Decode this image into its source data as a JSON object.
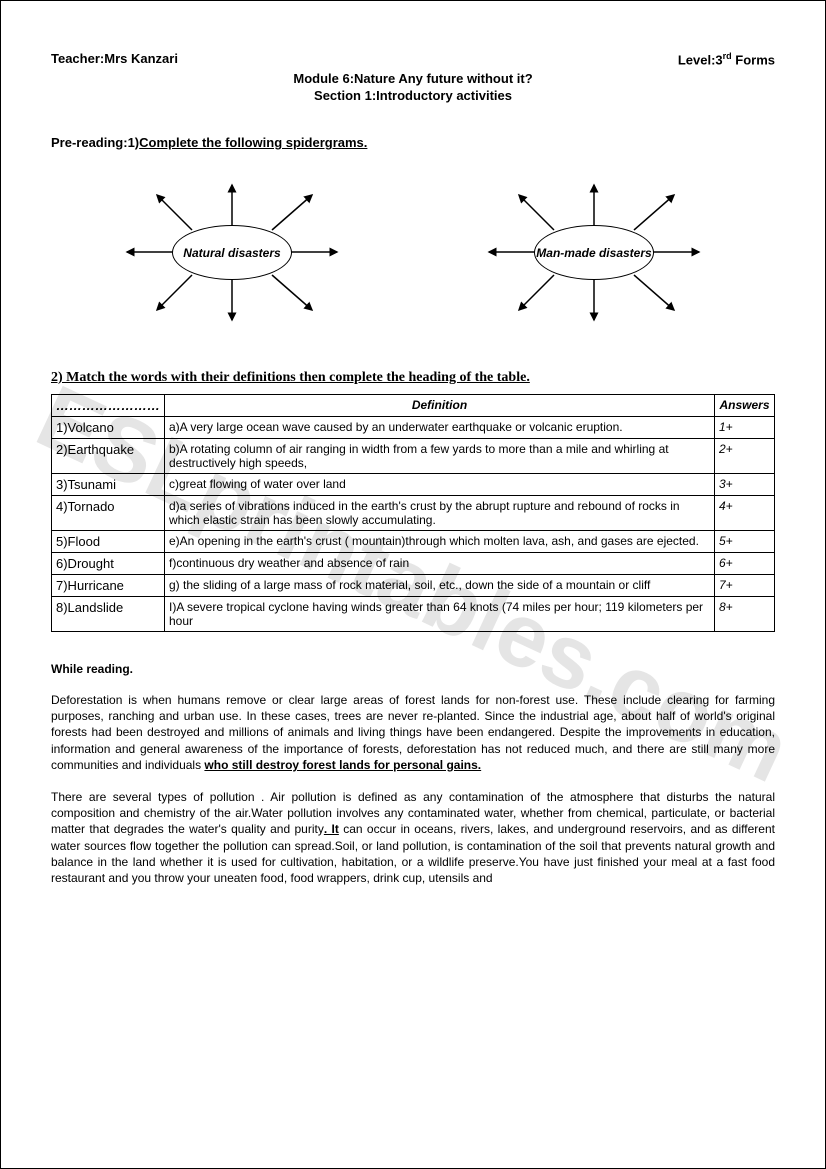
{
  "watermark": "ESLprintables.com",
  "header": {
    "teacher_label": "Teacher:",
    "teacher_name": "Mrs Kanzari",
    "level_label": "Level:",
    "level_value": "3",
    "level_suffix": "rd",
    "level_word": " Forms"
  },
  "title": {
    "line1": "Module 6:Nature Any future without it?",
    "line2": "Section 1:Introductory activities"
  },
  "prereading": {
    "prefix": "Pre-reading:1)",
    "instruction": "Complete the following spidergrams."
  },
  "spidergrams": {
    "left": "Natural disasters",
    "right": "Man-made disasters"
  },
  "section2": "2) Match the words with their definitions then complete the heading of the table.",
  "table": {
    "head_word": "……………………",
    "head_def": "Definition",
    "head_ans": "Answers",
    "rows": [
      {
        "word": "1)Volcano",
        "def": "a)A very large ocean wave caused by an underwater earthquake or volcanic eruption.",
        "ans": "1+"
      },
      {
        "word": "2)Earthquake",
        "def": "b)A rotating column of air ranging in width from a few yards to more than a mile and whirling at destructively high speeds,",
        "ans": "2+"
      },
      {
        "word": "3)Tsunami",
        "def": "c)great flowing of water over land",
        "ans": "3+"
      },
      {
        "word": "4)Tornado",
        "def": "d)a series of vibrations induced in the earth's crust by the abrupt rupture and rebound of rocks in which elastic strain has been slowly accumulating.",
        "ans": "4+"
      },
      {
        "word": "5)Flood",
        "def": "e)An opening in the earth's crust ( mountain)through which molten lava, ash, and gases are ejected.",
        "ans": "5+"
      },
      {
        "word": "6)Drought",
        "def": "f)continuous dry weather and absence of rain",
        "ans": "6+"
      },
      {
        "word": "7)Hurricane",
        "def": "g) the sliding of a large mass of rock material, soil, etc., down the side of a mountain or cliff",
        "ans": "7+"
      },
      {
        "word": " 8)Landslide",
        "def": " I)A severe tropical cyclone having winds greater than 64 knots (74 miles per hour; 119 kilometers per hour",
        "ans": "8+"
      }
    ]
  },
  "while_reading_label": "While reading.",
  "paragraph1": {
    "text": "Deforestation is when humans remove or clear large areas of forest lands for non-forest use. These include clearing for farming purposes, ranching and urban use. In these cases, trees are never re-planted. Since the industrial age, about half of world's original forests had been destroyed and millions of animals and living things have been endangered. Despite the improvements in education, information and general awareness of the importance of forests, deforestation has not reduced much, and there are still many more communities and individuals ",
    "bold": "who still destroy forest lands for personal gains."
  },
  "paragraph2": {
    "pre": "There are several types of pollution . Air pollution is defined as any contamination of the atmosphere that disturbs the natural composition and chemistry of the air.Water pollution involves any contaminated water, whether from chemical, particulate, or bacterial matter that degrades the water's quality and purity",
    "mid": ". It",
    "post": " can occur in oceans, rivers, lakes, and underground reservoirs, and as different water sources flow together the pollution can spread.Soil, or land pollution, is contamination of the soil that prevents natural growth and balance in the land whether it is used for cultivation, habitation, or a wildlife preserve.You have just finished your meal at a fast food restaurant and you throw your uneaten food, food wrappers, drink cup, utensils and"
  }
}
